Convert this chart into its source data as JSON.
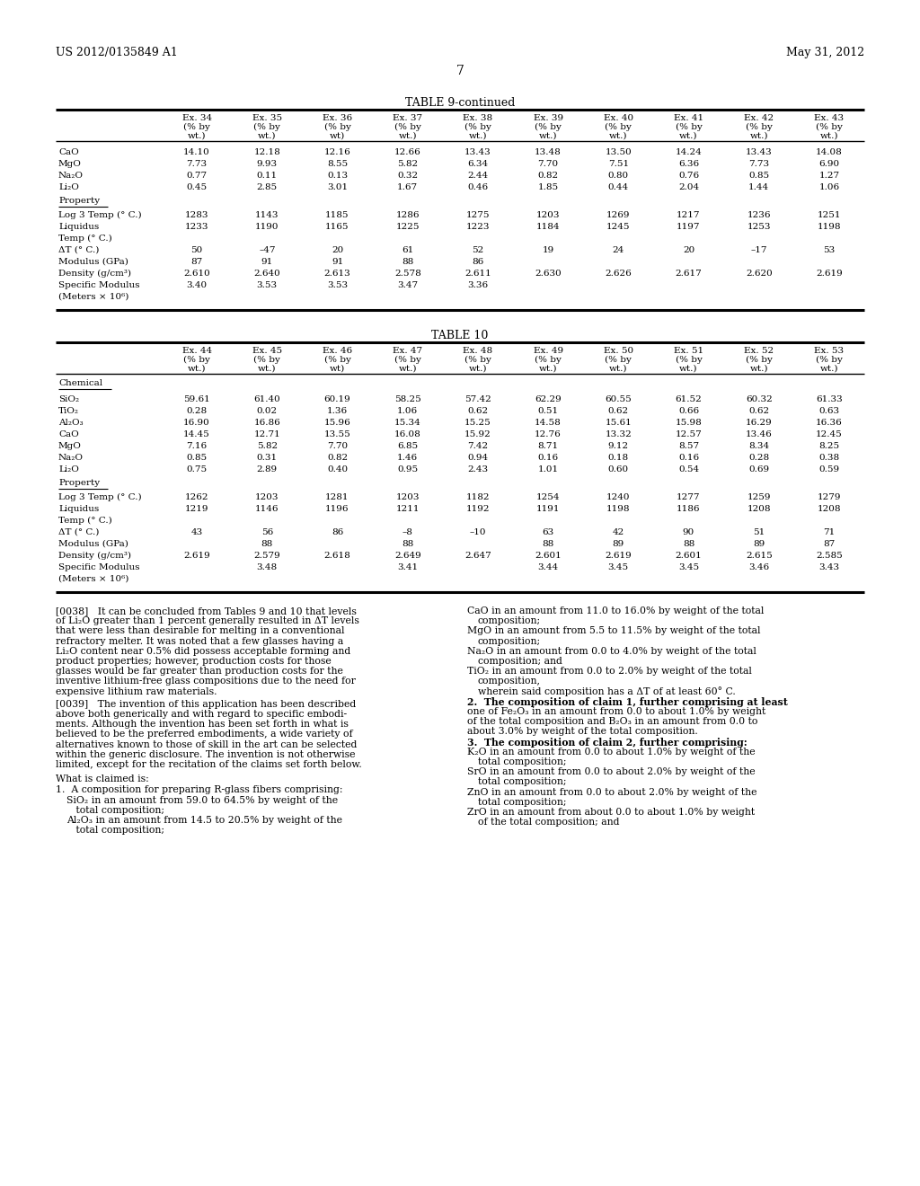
{
  "header_left": "US 2012/0135849 A1",
  "header_right": "May 31, 2012",
  "page_number": "7",
  "bg_color": "#ffffff",
  "table9_title": "TABLE 9-continued",
  "ex_cols_9": [
    [
      "Ex. 34",
      "(% by",
      "wt.)"
    ],
    [
      "Ex. 35",
      "(% by",
      "wt.)"
    ],
    [
      "Ex. 36",
      "(% by",
      "wt)"
    ],
    [
      "Ex. 37",
      "(% by",
      "wt.)"
    ],
    [
      "Ex. 38",
      "(% by",
      "wt.)"
    ],
    [
      "Ex. 39",
      "(% by",
      "wt.)"
    ],
    [
      "Ex. 40",
      "(% by",
      "wt.)"
    ],
    [
      "Ex. 41",
      "(% by",
      "wt.)"
    ],
    [
      "Ex. 42",
      "(% by",
      "wt.)"
    ],
    [
      "Ex. 43",
      "(% by",
      "wt.)"
    ]
  ],
  "table9_chem_rows": [
    [
      "CaO",
      "14.10",
      "12.18",
      "12.16",
      "12.66",
      "13.43",
      "13.48",
      "13.50",
      "14.24",
      "13.43",
      "14.08"
    ],
    [
      "MgO",
      "7.73",
      "9.93",
      "8.55",
      "5.82",
      "6.34",
      "7.70",
      "7.51",
      "6.36",
      "7.73",
      "6.90"
    ],
    [
      "Na₂O",
      "0.77",
      "0.11",
      "0.13",
      "0.32",
      "2.44",
      "0.82",
      "0.80",
      "0.76",
      "0.85",
      "1.27"
    ],
    [
      "Li₂O",
      "0.45",
      "2.85",
      "3.01",
      "1.67",
      "0.46",
      "1.85",
      "0.44",
      "2.04",
      "1.44",
      "1.06"
    ]
  ],
  "table9_prop_rows": [
    [
      "Log 3 Temp (° C.)",
      "1283",
      "1143",
      "1185",
      "1286",
      "1275",
      "1203",
      "1269",
      "1217",
      "1236",
      "1251"
    ],
    [
      "Liquidus",
      "1233",
      "1190",
      "1165",
      "1225",
      "1223",
      "1184",
      "1245",
      "1197",
      "1253",
      "1198"
    ],
    [
      "Temp (° C.)",
      "",
      "",
      "",
      "",
      "",
      "",
      "",
      "",
      "",
      ""
    ],
    [
      "ΔT (° C.)",
      "50",
      "–47",
      "20",
      "61",
      "52",
      "19",
      "24",
      "20",
      "–17",
      "53"
    ],
    [
      "Modulus (GPa)",
      "87",
      "91",
      "91",
      "88",
      "86",
      "",
      "",
      "",
      "",
      ""
    ],
    [
      "Density (g/cm³)",
      "2.610",
      "2.640",
      "2.613",
      "2.578",
      "2.611",
      "2.630",
      "2.626",
      "2.617",
      "2.620",
      "2.619"
    ],
    [
      "Specific Modulus",
      "3.40",
      "3.53",
      "3.53",
      "3.47",
      "3.36",
      "",
      "",
      "",
      "",
      ""
    ],
    [
      "(Meters × 10⁶)",
      "",
      "",
      "",
      "",
      "",
      "",
      "",
      "",
      "",
      ""
    ]
  ],
  "table10_title": "TABLE 10",
  "ex_cols_10": [
    [
      "Ex. 44",
      "(% by",
      "wt.)"
    ],
    [
      "Ex. 45",
      "(% by",
      "wt.)"
    ],
    [
      "Ex. 46",
      "(% by",
      "wt)"
    ],
    [
      "Ex. 47",
      "(% by",
      "wt.)"
    ],
    [
      "Ex. 48",
      "(% by",
      "wt.)"
    ],
    [
      "Ex. 49",
      "(% by",
      "wt.)"
    ],
    [
      "Ex. 50",
      "(% by",
      "wt.)"
    ],
    [
      "Ex. 51",
      "(% by",
      "wt.)"
    ],
    [
      "Ex. 52",
      "(% by",
      "wt.)"
    ],
    [
      "Ex. 53",
      "(% by",
      "wt.)"
    ]
  ],
  "table10_chem_rows": [
    [
      "SiO₂",
      "59.61",
      "61.40",
      "60.19",
      "58.25",
      "57.42",
      "62.29",
      "60.55",
      "61.52",
      "60.32",
      "61.33"
    ],
    [
      "TiO₂",
      "0.28",
      "0.02",
      "1.36",
      "1.06",
      "0.62",
      "0.51",
      "0.62",
      "0.66",
      "0.62",
      "0.63"
    ],
    [
      "Al₂O₃",
      "16.90",
      "16.86",
      "15.96",
      "15.34",
      "15.25",
      "14.58",
      "15.61",
      "15.98",
      "16.29",
      "16.36"
    ],
    [
      "CaO",
      "14.45",
      "12.71",
      "13.55",
      "16.08",
      "15.92",
      "12.76",
      "13.32",
      "12.57",
      "13.46",
      "12.45"
    ],
    [
      "MgO",
      "7.16",
      "5.82",
      "7.70",
      "6.85",
      "7.42",
      "8.71",
      "9.12",
      "8.57",
      "8.34",
      "8.25"
    ],
    [
      "Na₂O",
      "0.85",
      "0.31",
      "0.82",
      "1.46",
      "0.94",
      "0.16",
      "0.18",
      "0.16",
      "0.28",
      "0.38"
    ],
    [
      "Li₂O",
      "0.75",
      "2.89",
      "0.40",
      "0.95",
      "2.43",
      "1.01",
      "0.60",
      "0.54",
      "0.69",
      "0.59"
    ]
  ],
  "table10_prop_rows": [
    [
      "Log 3 Temp (° C.)",
      "1262",
      "1203",
      "1281",
      "1203",
      "1182",
      "1254",
      "1240",
      "1277",
      "1259",
      "1279"
    ],
    [
      "Liquidus",
      "1219",
      "1146",
      "1196",
      "1211",
      "1192",
      "1191",
      "1198",
      "1186",
      "1208",
      "1208"
    ],
    [
      "Temp (° C.)",
      "",
      "",
      "",
      "",
      "",
      "",
      "",
      "",
      "",
      ""
    ],
    [
      "ΔT (° C.)",
      "43",
      "56",
      "86",
      "–8",
      "–10",
      "63",
      "42",
      "90",
      "51",
      "71"
    ],
    [
      "Modulus (GPa)",
      "",
      "88",
      "",
      "88",
      "",
      "88",
      "89",
      "88",
      "89",
      "87"
    ],
    [
      "Density (g/cm³)",
      "2.619",
      "2.579",
      "2.618",
      "2.649",
      "2.647",
      "2.601",
      "2.619",
      "2.601",
      "2.615",
      "2.585"
    ],
    [
      "Specific Modulus",
      "",
      "3.48",
      "",
      "3.41",
      "",
      "3.44",
      "3.45",
      "3.45",
      "3.46",
      "3.43"
    ],
    [
      "(Meters × 10⁶)",
      "",
      "",
      "",
      "",
      "",
      "",
      "",
      "",
      "",
      ""
    ]
  ],
  "para_0038_left": "[0038]   It can be concluded from Tables 9 and 10 that levels\nof Li₂O greater than 1 percent generally resulted in ΔT levels\nthat were less than desirable for melting in a conventional\nrefractory melter. It was noted that a few glasses having a\nLi₂O content near 0.5% did possess acceptable forming and\nproduct properties; however, production costs for those\nglasses would be far greater than production costs for the\ninventive lithium-free glass compositions due to the need for\nexpensive lithium raw materials.",
  "para_0039_left": "[0039]   The invention of this application has been described\nabove both generically and with regard to specific embodi-\nments. Although the invention has been set forth in what is\nbelieved to be the preferred embodiments, a wide variety of\nalternatives known to those of skill in the art can be selected\nwithin the generic disclosure. The invention is not otherwise\nlimited, except for the recitation of the claims set forth below.",
  "claims_header": "What is claimed is:",
  "claim1_header": "1.  A composition for preparing R-glass fibers comprising:",
  "claim1_items_left": [
    "SiO₂ in an amount from 59.0 to 64.5% by weight of the",
    "   total composition;",
    "Al₂O₃ in an amount from 14.5 to 20.5% by weight of the",
    "   total composition;"
  ],
  "right_col_lines": [
    "CaO in an amount from 11.0 to 16.0% by weight of the total",
    "   composition;",
    "MgO in an amount from 5.5 to 11.5% by weight of the total",
    "   composition;",
    "Na₂O in an amount from 0.0 to 4.0% by weight of the total",
    "   composition; and",
    "TiO₂ in an amount from 0.0 to 2.0% by weight of the total",
    "   composition,",
    "   wherein said composition has a ΔT of at least 60° C.",
    "2.  The composition of claim 1, further comprising at least",
    "one of Fe₂O₃ in an amount from 0.0 to about 1.0% by weight",
    "of the total composition and B₂O₃ in an amount from 0.0 to",
    "about 3.0% by weight of the total composition.",
    "3.  The composition of claim 2, further comprising:",
    "K₂O in an amount from 0.0 to about 1.0% by weight of the",
    "   total composition;",
    "SrO in an amount from 0.0 to about 2.0% by weight of the",
    "   total composition;",
    "ZnO in an amount from 0.0 to about 2.0% by weight of the",
    "   total composition;",
    "ZrO in an amount from about 0.0 to about 1.0% by weight",
    "   of the total composition; and"
  ]
}
